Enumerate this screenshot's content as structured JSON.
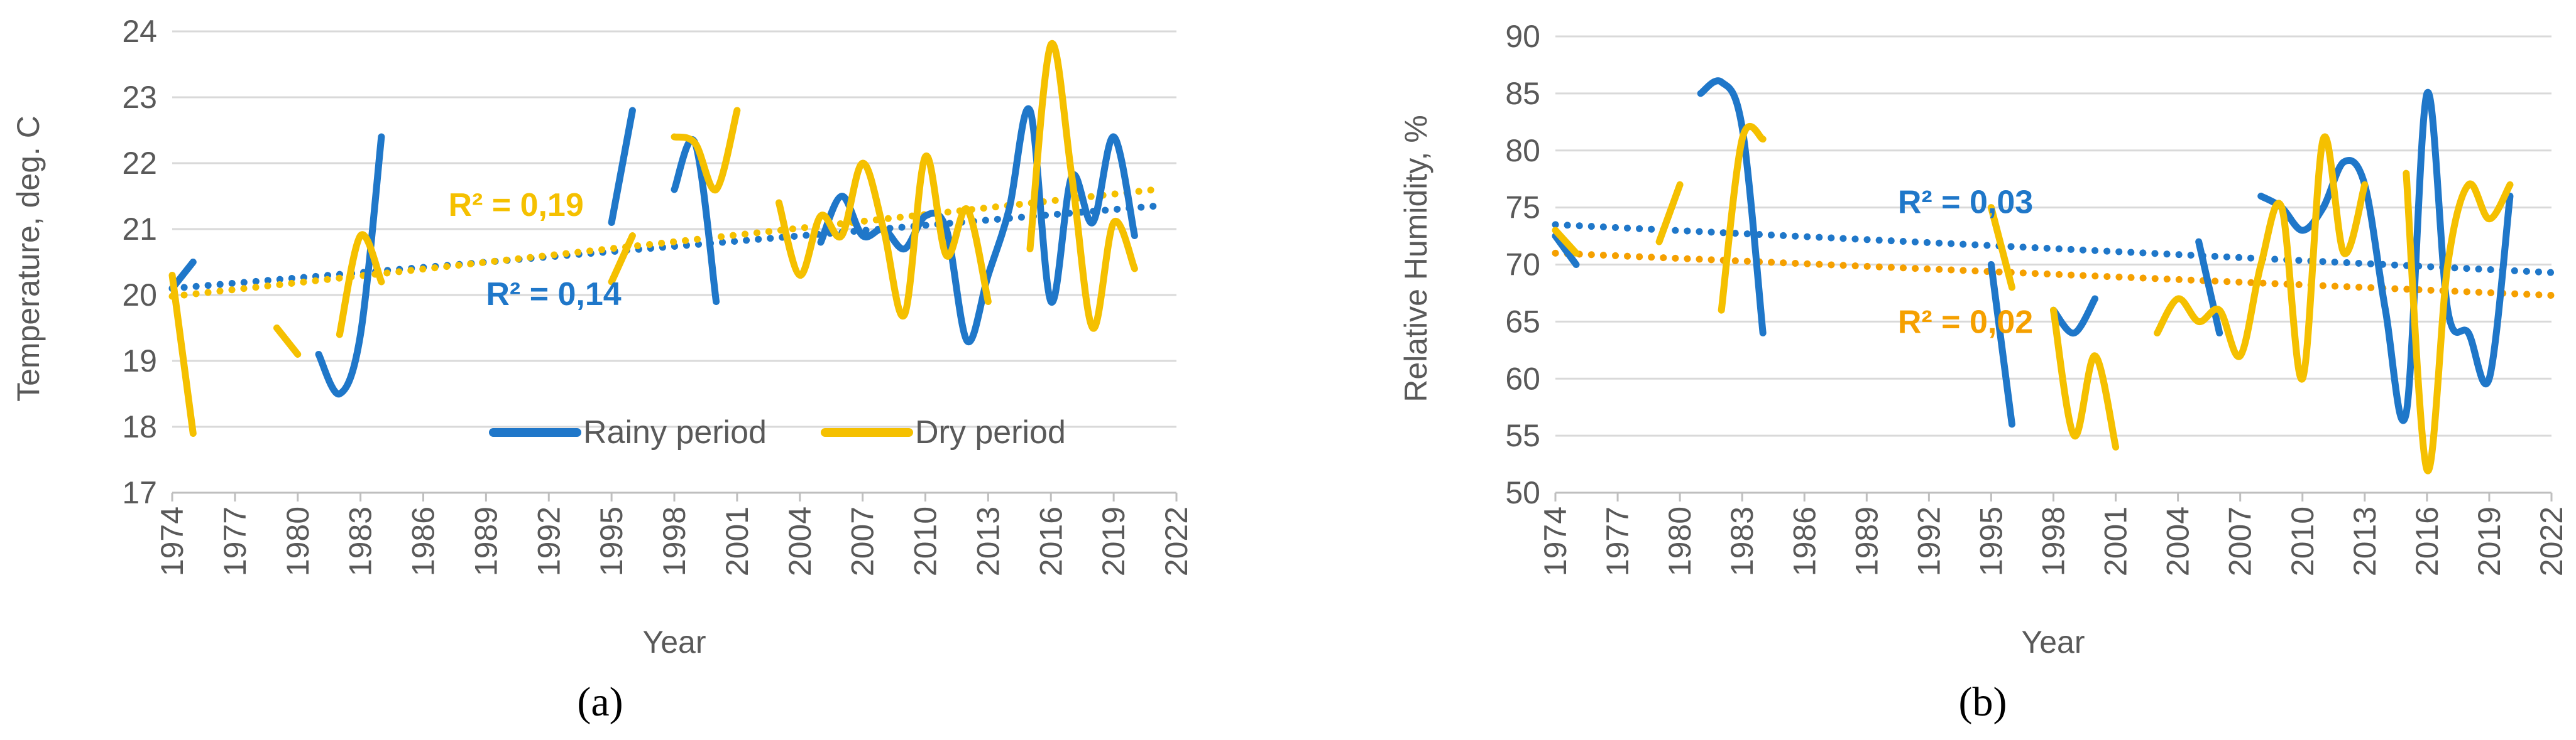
{
  "colors": {
    "rainy": "#1f77c9",
    "dry": "#f5c000",
    "rainy_trend": "#1f77c9",
    "dry_trend_a": "#f5c000",
    "dry_trend_b": "#f5a000",
    "grid": "#d9d9d9",
    "text": "#595959"
  },
  "chart_data": [
    {
      "type": "line",
      "panel_label": "a",
      "caption": "(a)",
      "ylabel": "Temperature, deg. C",
      "xlabel": "Year",
      "xlim": [
        1974,
        2022
      ],
      "ylim": [
        17,
        24
      ],
      "xticks": [
        "1974",
        "1977",
        "1980",
        "1983",
        "1986",
        "1989",
        "1992",
        "1995",
        "1998",
        "2001",
        "2004",
        "2007",
        "2010",
        "2013",
        "2016",
        "2019",
        "2022"
      ],
      "yticks": [
        "17",
        "18",
        "19",
        "20",
        "21",
        "22",
        "23",
        "24"
      ],
      "legend": {
        "position": "bottom-right",
        "entries": [
          "Rainy period",
          "Dry period"
        ]
      },
      "annotations": [
        {
          "text": "R² = 0,19",
          "series": "Dry period",
          "x": 1987.2,
          "y": 21.2
        },
        {
          "text": "R² = 0,14",
          "series": "Rainy period",
          "x": 1989,
          "y": 19.85
        }
      ],
      "series": [
        {
          "name": "Rainy period",
          "segments": [
            [
              [
                1974,
                20.1
              ],
              [
                1975,
                20.5
              ]
            ],
            [
              [
                1981,
                19.1
              ],
              [
                1982,
                18.5
              ],
              [
                1983,
                19.4
              ],
              [
                1984,
                22.4
              ]
            ],
            [
              [
                1995,
                21.1
              ],
              [
                1996,
                22.8
              ]
            ],
            [
              [
                1998,
                21.6
              ],
              [
                1999,
                22.3
              ],
              [
                2000,
                19.9
              ]
            ],
            [
              [
                2005,
                20.8
              ],
              [
                2006,
                21.5
              ],
              [
                2007,
                20.9
              ],
              [
                2008,
                21.0
              ],
              [
                2009,
                20.7
              ],
              [
                2010,
                21.2
              ],
              [
                2011,
                21.0
              ],
              [
                2012,
                19.3
              ],
              [
                2013,
                20.3
              ],
              [
                2014,
                21.3
              ],
              [
                2015,
                22.8
              ],
              [
                2016,
                19.9
              ],
              [
                2017,
                21.8
              ],
              [
                2018,
                21.1
              ],
              [
                2019,
                22.4
              ],
              [
                2020,
                20.9
              ]
            ]
          ],
          "trend": [
            [
              1974,
              20.1
            ],
            [
              2021,
              21.35
            ]
          ],
          "r2": "R² = 0,14"
        },
        {
          "name": "Dry period",
          "segments": [
            [
              [
                1974,
                20.3
              ],
              [
                1975,
                17.9
              ]
            ],
            [
              [
                1979,
                19.5
              ],
              [
                1980,
                19.1
              ]
            ],
            [
              [
                1982,
                19.4
              ],
              [
                1983,
                20.9
              ],
              [
                1984,
                20.2
              ]
            ],
            [
              [
                1995,
                20.2
              ],
              [
                1996,
                20.9
              ]
            ],
            [
              [
                1998,
                22.4
              ],
              [
                1999,
                22.3
              ],
              [
                2000,
                21.6
              ],
              [
                2001,
                22.8
              ]
            ],
            [
              [
                2003,
                21.4
              ],
              [
                2004,
                20.3
              ],
              [
                2005,
                21.2
              ],
              [
                2006,
                20.9
              ],
              [
                2007,
                22.0
              ],
              [
                2008,
                21.0
              ],
              [
                2009,
                19.7
              ],
              [
                2010,
                22.1
              ],
              [
                2011,
                20.6
              ],
              [
                2012,
                21.3
              ],
              [
                2013,
                19.9
              ]
            ],
            [
              [
                2015,
                20.7
              ],
              [
                2016,
                23.8
              ],
              [
                2017,
                21.8
              ],
              [
                2018,
                19.5
              ],
              [
                2019,
                21.1
              ],
              [
                2020,
                20.4
              ]
            ]
          ],
          "trend": [
            [
              1974,
              19.98
            ],
            [
              2021,
              21.6
            ]
          ],
          "r2": "R² = 0,19"
        }
      ]
    },
    {
      "type": "line",
      "panel_label": "b",
      "caption": "(b)",
      "ylabel": "Relative Humidity, %",
      "xlabel": "Year",
      "xlim": [
        1974,
        2022
      ],
      "ylim": [
        50,
        90
      ],
      "xticks": [
        "1974",
        "1977",
        "1980",
        "1983",
        "1986",
        "1989",
        "1992",
        "1995",
        "1998",
        "2001",
        "2004",
        "2007",
        "2010",
        "2013",
        "2016",
        "2019",
        "2022"
      ],
      "yticks": [
        "50",
        "55",
        "60",
        "65",
        "70",
        "75",
        "80",
        "85",
        "90"
      ],
      "annotations": [
        {
          "text": "R² = 0,03",
          "series": "Rainy period",
          "x": 1990.5,
          "y": 74.5
        },
        {
          "text": "R² = 0,02",
          "series": "Dry period",
          "x": 1990.5,
          "y": 64.0
        }
      ],
      "series": [
        {
          "name": "Rainy period",
          "segments": [
            [
              [
                1974,
                72.5
              ],
              [
                1975,
                70.0
              ]
            ],
            [
              [
                1981,
                85.0
              ],
              [
                1982,
                86.0
              ],
              [
                1983,
                82.0
              ],
              [
                1984,
                64.0
              ]
            ],
            [
              [
                1995,
                70.0
              ],
              [
                1996,
                56.0
              ]
            ],
            [
              [
                1998,
                66.0
              ],
              [
                1999,
                64.0
              ],
              [
                2000,
                67.0
              ]
            ],
            [
              [
                2005,
                72.0
              ],
              [
                2006,
                64.0
              ]
            ],
            [
              [
                2008,
                76.0
              ],
              [
                2009,
                75.0
              ],
              [
                2010,
                73.0
              ],
              [
                2011,
                75.0
              ],
              [
                2012,
                79.0
              ],
              [
                2013,
                77.0
              ],
              [
                2014,
                66.0
              ],
              [
                2015,
                57.0
              ],
              [
                2016,
                85.0
              ],
              [
                2017,
                66.0
              ],
              [
                2018,
                64.0
              ],
              [
                2019,
                60.0
              ],
              [
                2020,
                76.0
              ]
            ]
          ],
          "trend": [
            [
              1974,
              73.5
            ],
            [
              2022,
              69.3
            ]
          ],
          "r2": "R² = 0,03"
        },
        {
          "name": "Dry period",
          "segments": [
            [
              [
                1974,
                73.0
              ],
              [
                1975,
                71.0
              ]
            ],
            [
              [
                1979,
                72.0
              ],
              [
                1980,
                77.0
              ]
            ],
            [
              [
                1982,
                66.0
              ],
              [
                1983,
                81.0
              ],
              [
                1984,
                81.0
              ]
            ],
            [
              [
                1995,
                75.0
              ],
              [
                1996,
                68.0
              ]
            ],
            [
              [
                1998,
                66.0
              ],
              [
                1999,
                55.0
              ],
              [
                2000,
                62.0
              ],
              [
                2001,
                54.0
              ]
            ],
            [
              [
                2003,
                64.0
              ],
              [
                2004,
                67.0
              ],
              [
                2005,
                65.0
              ],
              [
                2006,
                66.0
              ],
              [
                2007,
                62.0
              ],
              [
                2008,
                70.0
              ],
              [
                2009,
                75.0
              ],
              [
                2010,
                60.0
              ],
              [
                2011,
                81.0
              ],
              [
                2012,
                71.0
              ],
              [
                2013,
                77.0
              ]
            ],
            [
              [
                2015,
                78.0
              ],
              [
                2016,
                52.0
              ],
              [
                2017,
                70.0
              ],
              [
                2018,
                77.0
              ],
              [
                2019,
                74.0
              ],
              [
                2020,
                77.0
              ]
            ]
          ],
          "trend": [
            [
              1974,
              71.0
            ],
            [
              2022,
              67.3
            ]
          ],
          "r2": "R² = 0,02"
        }
      ]
    }
  ]
}
